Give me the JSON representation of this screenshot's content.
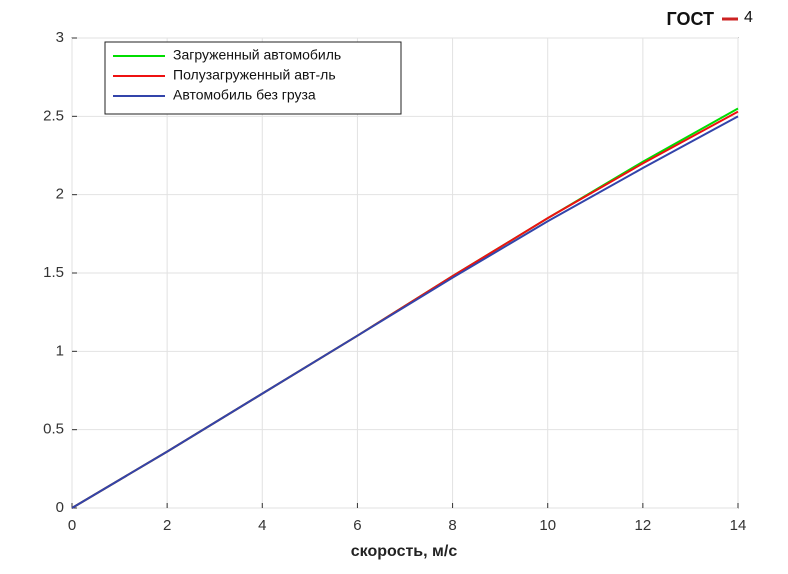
{
  "chart_data": {
    "type": "line",
    "xlabel": "скорость, м/с",
    "annotations": [
      "ГОСТ",
      "4"
    ],
    "x": [
      0,
      2,
      4,
      6,
      8,
      10,
      12,
      14
    ],
    "series": [
      {
        "name": "Загруженный автомобиль",
        "color": "#00dd00",
        "values": [
          0,
          0.36,
          0.73,
          1.1,
          1.48,
          1.85,
          2.21,
          2.55
        ]
      },
      {
        "name": "Полузагруженный авт-ль",
        "color": "#ee1111",
        "values": [
          0,
          0.36,
          0.73,
          1.1,
          1.48,
          1.85,
          2.2,
          2.53
        ]
      },
      {
        "name": "Автомобиль без груза",
        "color": "#3344aa",
        "values": [
          0,
          0.36,
          0.73,
          1.1,
          1.47,
          1.83,
          2.17,
          2.5
        ]
      }
    ],
    "xlim": [
      0,
      14
    ],
    "xticks": [
      0,
      2,
      4,
      6,
      8,
      10,
      12,
      14
    ],
    "ylim": [
      0,
      3
    ],
    "yticks": [
      0,
      0.5,
      1,
      1.5,
      2,
      2.5,
      3
    ],
    "grid": true,
    "legend": "upper-left"
  }
}
